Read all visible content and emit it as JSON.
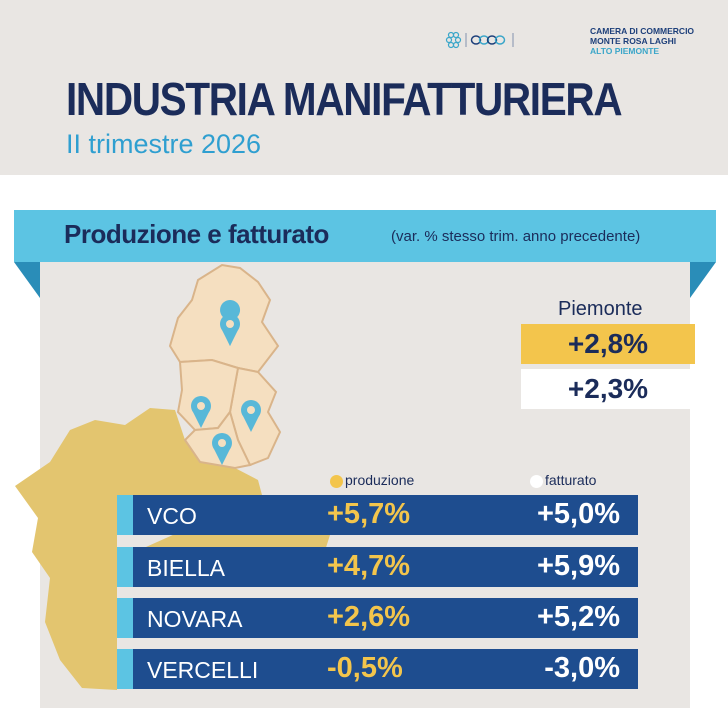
{
  "header": {
    "title": "INDUSTRIA MANIFATTURIERA",
    "subtitle": "II trimestre 2026",
    "logo_line1": "CAMERA DI COMMERCIO",
    "logo_line2": "MONTE ROSA LAGHI",
    "logo_line3": "ALTO PIEMONTE"
  },
  "section": {
    "title": "Produzione e fatturato",
    "note": "(var. % stesso trim. anno precedente)"
  },
  "piemonte": {
    "label": "Piemonte",
    "produzione": "+2,8%",
    "fatturato": "+2,3%"
  },
  "legend": {
    "produzione": "produzione",
    "fatturato": "fatturato"
  },
  "colors": {
    "navy": "#1b2c5a",
    "row_blue": "#1e4d8f",
    "accent_cyan": "#5cc4e3",
    "produzione_yellow": "#f3c54c",
    "province_fill": "#f5dfc0",
    "piemonte_fill": "#e3c56f"
  },
  "rows": [
    {
      "name": "VCO",
      "produzione": "+5,7%",
      "fatturato": "+5,0%"
    },
    {
      "name": "BIELLA",
      "produzione": "+4,7%",
      "fatturato": "+5,9%"
    },
    {
      "name": "NOVARA",
      "produzione": "+2,6%",
      "fatturato": "+5,2%"
    },
    {
      "name": "VERCELLI",
      "produzione": "-0,5%",
      "fatturato": "-3,0%"
    }
  ],
  "map": {
    "markers": [
      "map-pin-icon",
      "map-pin-icon",
      "map-pin-icon",
      "map-pin-icon"
    ]
  }
}
